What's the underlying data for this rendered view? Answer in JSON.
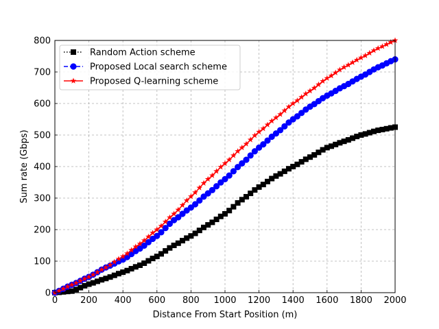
{
  "chart_data": {
    "type": "line",
    "title": "",
    "xlabel": "Distance From Start Position (m)",
    "ylabel": "Sum rate (Gbps)",
    "xlim": [
      0,
      2000
    ],
    "ylim": [
      0,
      800
    ],
    "xticks": [
      0,
      200,
      400,
      600,
      800,
      1000,
      1200,
      1400,
      1600,
      1800,
      2000
    ],
    "yticks": [
      0,
      100,
      200,
      300,
      400,
      500,
      600,
      700,
      800
    ],
    "grid": true,
    "grid_style": "dashed",
    "legend_position": "top-left",
    "x_step": 25,
    "series": [
      {
        "name": "Random Action scheme",
        "color": "#000000",
        "marker": "square",
        "linestyle": "dotted",
        "anchors": [
          [
            0,
            0
          ],
          [
            100,
            5
          ],
          [
            200,
            27
          ],
          [
            300,
            45
          ],
          [
            400,
            65
          ],
          [
            500,
            87
          ],
          [
            600,
            115
          ],
          [
            700,
            150
          ],
          [
            800,
            180
          ],
          [
            900,
            215
          ],
          [
            1000,
            250
          ],
          [
            1100,
            295
          ],
          [
            1200,
            335
          ],
          [
            1300,
            370
          ],
          [
            1400,
            400
          ],
          [
            1500,
            430
          ],
          [
            1600,
            460
          ],
          [
            1700,
            480
          ],
          [
            1800,
            500
          ],
          [
            1900,
            515
          ],
          [
            2000,
            525
          ]
        ]
      },
      {
        "name": "Proposed Local search scheme",
        "color": "#0000ff",
        "marker": "circle",
        "linestyle": "dashed",
        "anchors": [
          [
            0,
            0
          ],
          [
            100,
            25
          ],
          [
            200,
            50
          ],
          [
            300,
            80
          ],
          [
            400,
            105
          ],
          [
            500,
            140
          ],
          [
            600,
            180
          ],
          [
            700,
            230
          ],
          [
            800,
            270
          ],
          [
            900,
            315
          ],
          [
            1000,
            360
          ],
          [
            1100,
            410
          ],
          [
            1200,
            460
          ],
          [
            1300,
            505
          ],
          [
            1400,
            550
          ],
          [
            1500,
            590
          ],
          [
            1600,
            625
          ],
          [
            1700,
            655
          ],
          [
            1800,
            685
          ],
          [
            1900,
            715
          ],
          [
            2000,
            740
          ]
        ]
      },
      {
        "name": "Proposed Q-learning scheme",
        "color": "#ff0000",
        "marker": "star",
        "linestyle": "solid",
        "anchors": [
          [
            0,
            0
          ],
          [
            100,
            25
          ],
          [
            200,
            50
          ],
          [
            300,
            80
          ],
          [
            400,
            115
          ],
          [
            500,
            155
          ],
          [
            600,
            200
          ],
          [
            700,
            250
          ],
          [
            800,
            305
          ],
          [
            900,
            360
          ],
          [
            1000,
            410
          ],
          [
            1100,
            460
          ],
          [
            1200,
            510
          ],
          [
            1300,
            555
          ],
          [
            1400,
            600
          ],
          [
            1500,
            640
          ],
          [
            1600,
            680
          ],
          [
            1700,
            715
          ],
          [
            1800,
            745
          ],
          [
            1900,
            775
          ],
          [
            2000,
            800
          ]
        ]
      }
    ]
  }
}
